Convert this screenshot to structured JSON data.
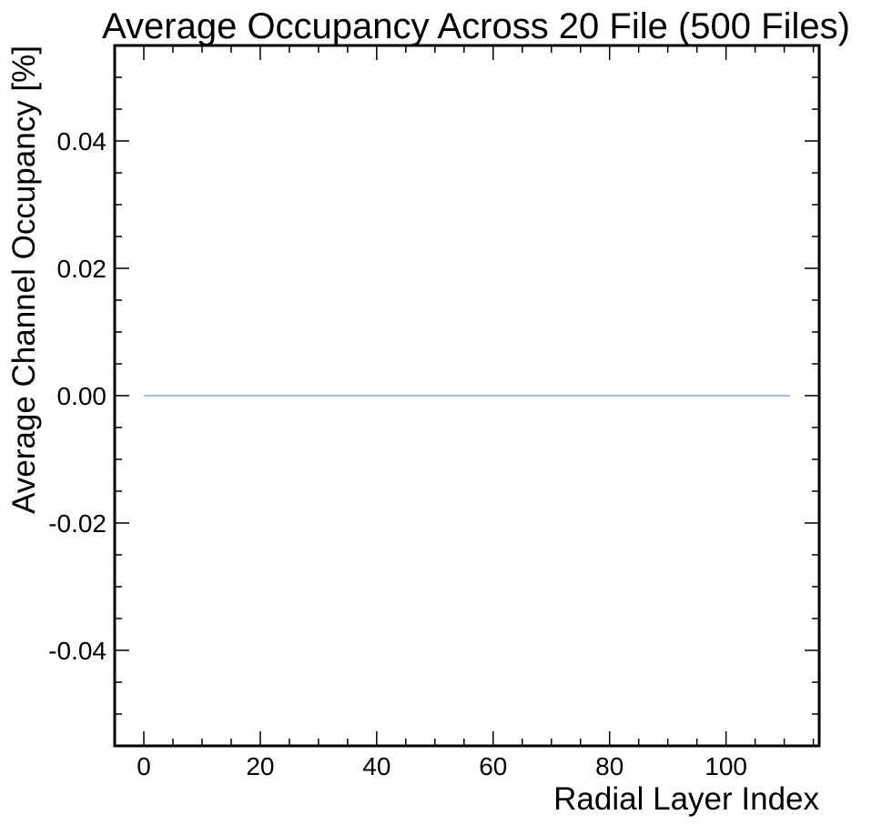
{
  "chart_data": {
    "type": "line",
    "title": "Average Occupancy Across 20 File (500 Files)",
    "xlabel": "Radial Layer Index",
    "ylabel": "Average Channel Occupancy [%]",
    "xlim": [
      -5,
      116
    ],
    "ylim": [
      -0.055,
      0.055
    ],
    "x_ticks": [
      0,
      20,
      40,
      60,
      80,
      100
    ],
    "x_tick_labels": [
      "0",
      "20",
      "40",
      "60",
      "80",
      "100"
    ],
    "y_ticks": [
      0.04,
      0.02,
      0.0,
      -0.02,
      -0.04
    ],
    "y_tick_labels": [
      "0.04",
      "0.02",
      "0.00",
      "-0.02",
      "-0.04"
    ],
    "grid": false,
    "series": [
      {
        "color": "#5b9bf5",
        "x_start": 0,
        "x_end": 111,
        "x_step": 1,
        "y_constant": 0.0
      }
    ]
  }
}
